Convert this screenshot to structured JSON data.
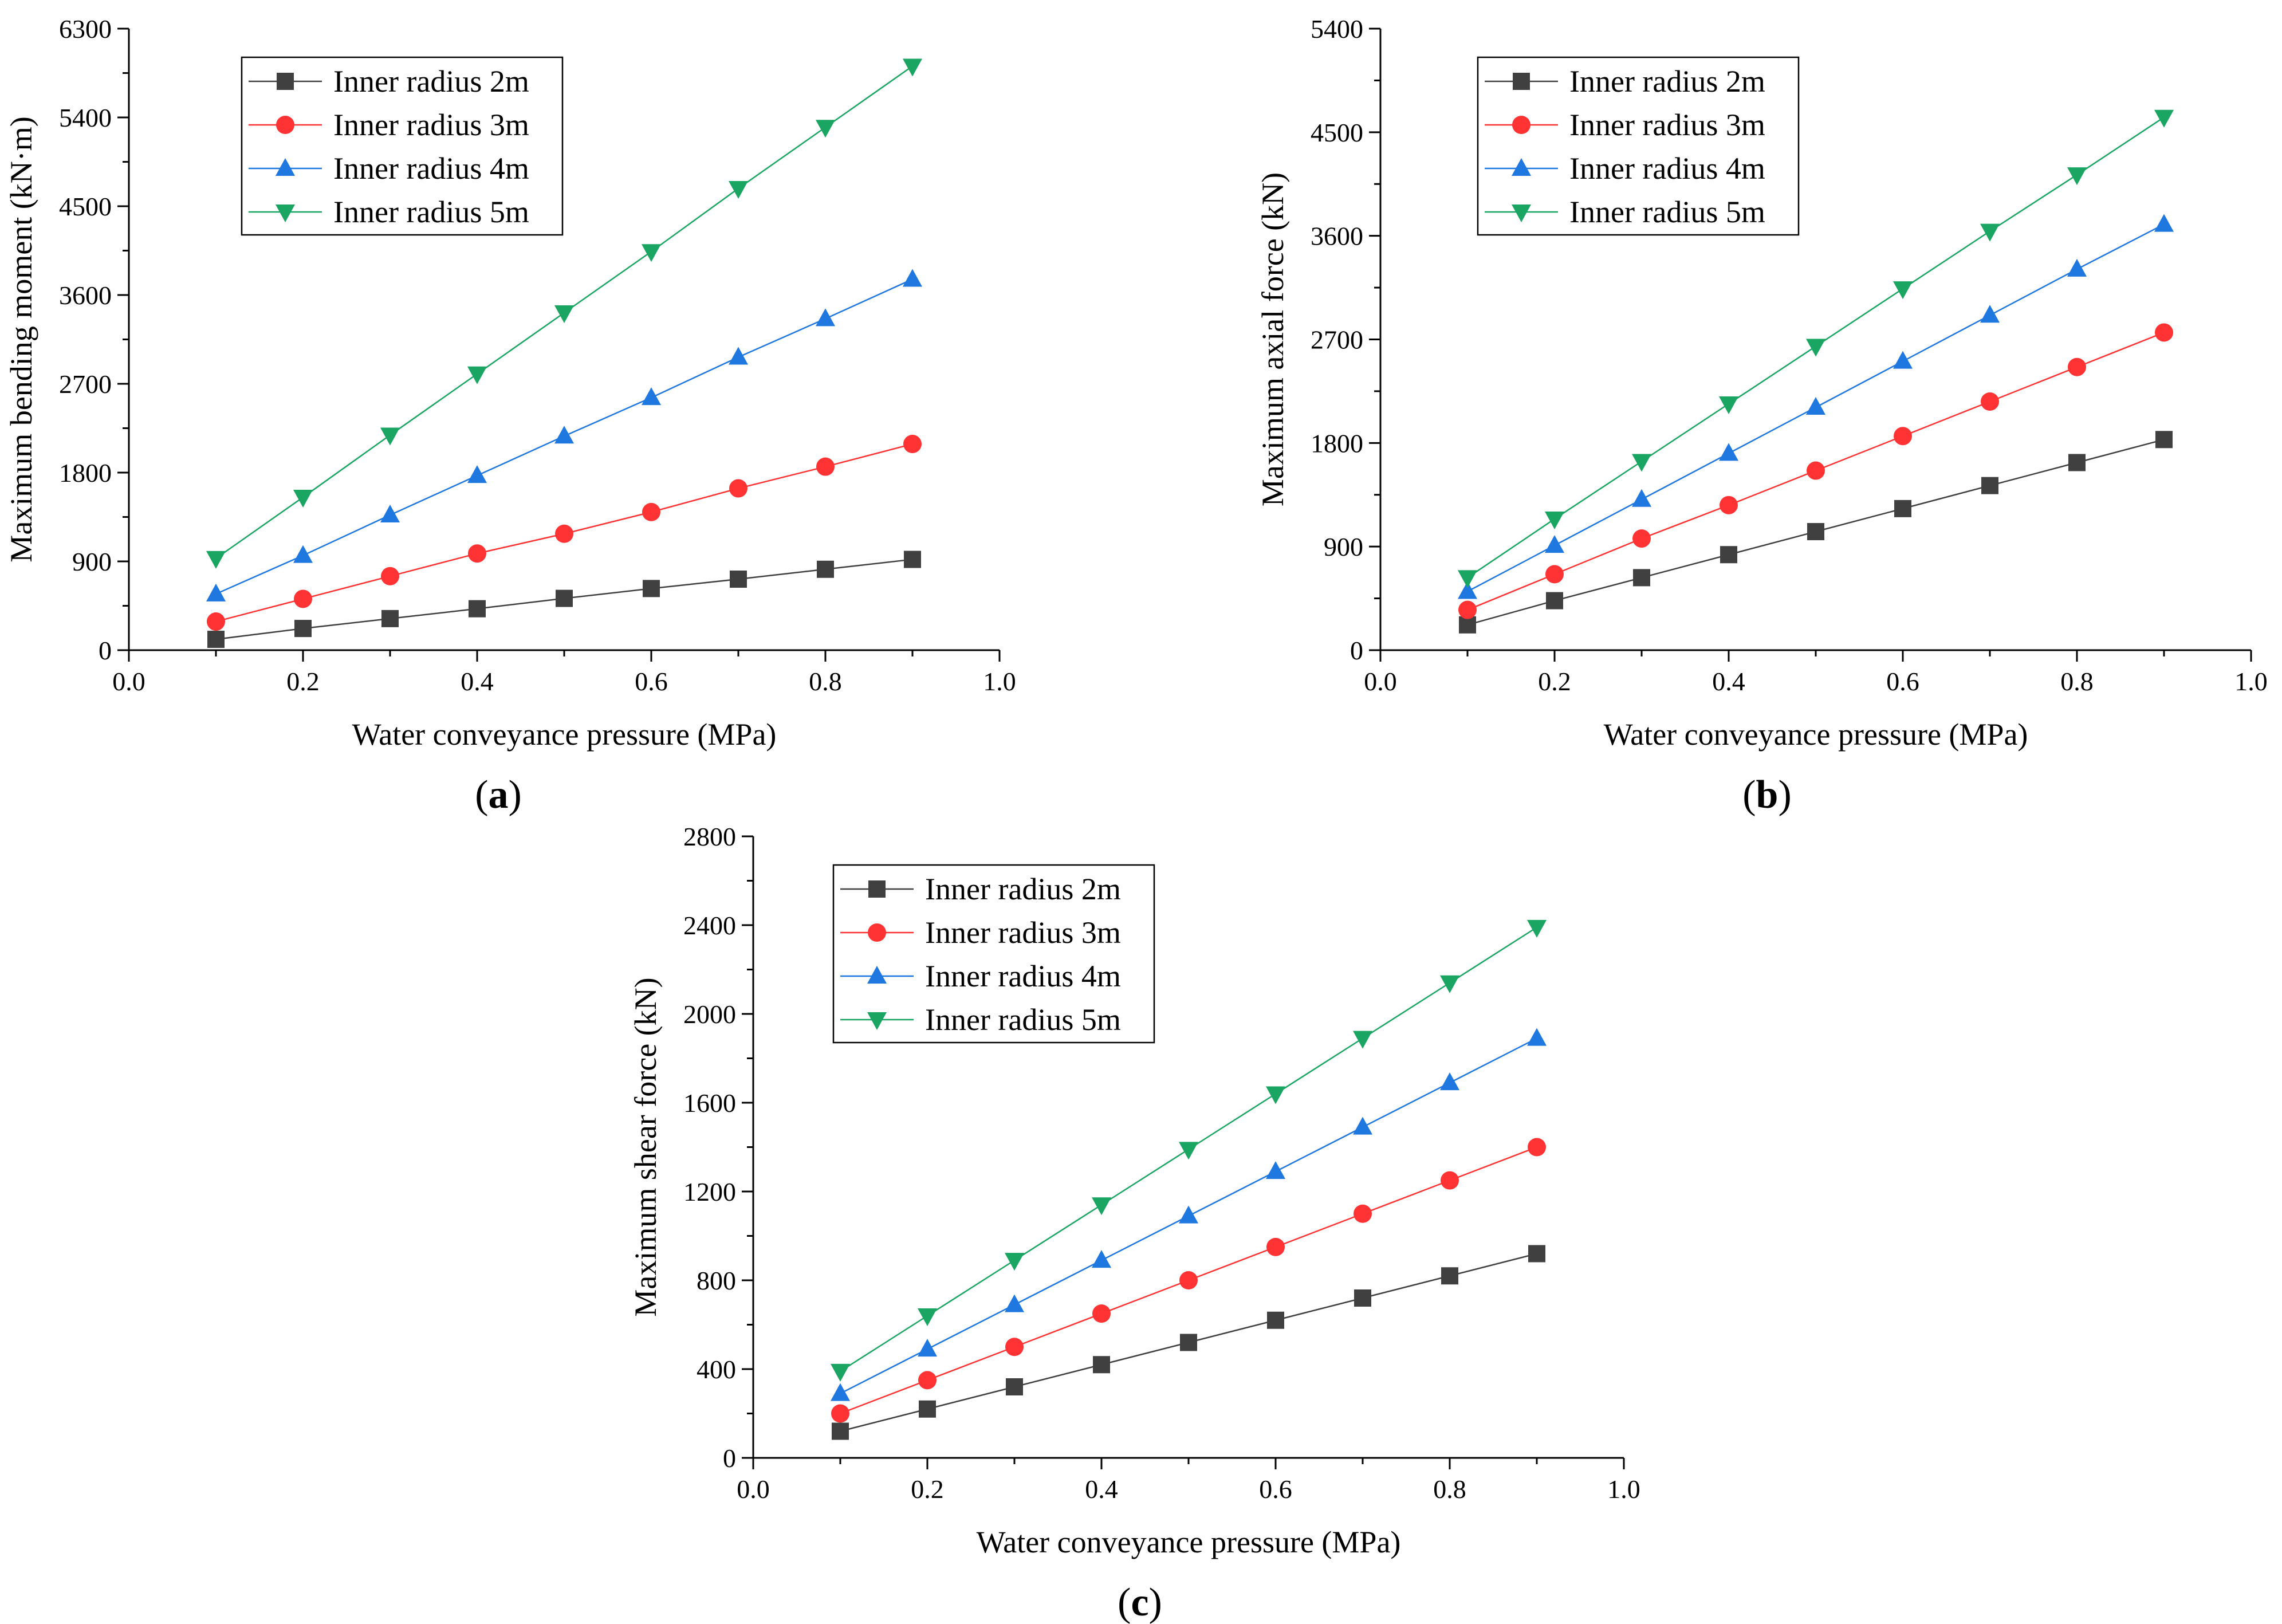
{
  "figure": {
    "panels": [
      "a",
      "b",
      "c"
    ]
  },
  "series_styles": [
    {
      "name": "Inner radius 2m",
      "color": "#404040",
      "marker": "square"
    },
    {
      "name": "Inner radius 3m",
      "color": "#ff3333",
      "marker": "circle"
    },
    {
      "name": "Inner radius 4m",
      "color": "#1f77e0",
      "marker": "triangle-up"
    },
    {
      "name": "Inner radius 5m",
      "color": "#1aa562",
      "marker": "triangle-down"
    }
  ],
  "chart_data": [
    {
      "id": "a",
      "type": "line",
      "panel_label": "a",
      "title": "",
      "xlabel": "Water conveyance pressure (MPa)",
      "ylabel": "Maximum bending moment (kN·m)",
      "xlim": [
        0.0,
        1.0
      ],
      "ylim": [
        0,
        6300
      ],
      "xticks": [
        "0.0",
        "0.2",
        "0.4",
        "0.6",
        "0.8",
        "1.0"
      ],
      "yticks": [
        "0",
        "900",
        "1800",
        "2700",
        "3600",
        "4500",
        "5400",
        "6300"
      ],
      "legend_position": "top-left",
      "x": [
        0.1,
        0.2,
        0.3,
        0.4,
        0.5,
        0.6,
        0.7,
        0.8,
        0.9
      ],
      "series": [
        {
          "name": "Inner radius 2m",
          "values": [
            110,
            220,
            320,
            420,
            525,
            625,
            720,
            820,
            920
          ]
        },
        {
          "name": "Inner radius 3m",
          "values": [
            290,
            520,
            750,
            980,
            1180,
            1400,
            1640,
            1860,
            2090
          ]
        },
        {
          "name": "Inner radius 4m",
          "values": [
            570,
            960,
            1370,
            1770,
            2170,
            2560,
            2970,
            3360,
            3760
          ]
        },
        {
          "name": "Inner radius 5m",
          "values": [
            930,
            1550,
            2180,
            2800,
            3420,
            4040,
            4680,
            5300,
            5920
          ]
        }
      ]
    },
    {
      "id": "b",
      "type": "line",
      "panel_label": "b",
      "title": "",
      "xlabel": "Water conveyance pressure (MPa)",
      "ylabel": "Maximum axial force (kN)",
      "xlim": [
        0.0,
        1.0
      ],
      "ylim": [
        0,
        5400
      ],
      "xticks": [
        "0.0",
        "0.2",
        "0.4",
        "0.6",
        "0.8",
        "1.0"
      ],
      "yticks": [
        "0",
        "900",
        "1800",
        "2700",
        "3600",
        "4500",
        "5400"
      ],
      "legend_position": "top-left",
      "x": [
        0.1,
        0.2,
        0.3,
        0.4,
        0.5,
        0.6,
        0.7,
        0.8,
        0.9
      ],
      "series": [
        {
          "name": "Inner radius 2m",
          "values": [
            220,
            430,
            630,
            830,
            1030,
            1230,
            1430,
            1630,
            1830
          ]
        },
        {
          "name": "Inner radius 3m",
          "values": [
            350,
            660,
            970,
            1260,
            1560,
            1860,
            2160,
            2460,
            2760
          ]
        },
        {
          "name": "Inner radius 4m",
          "values": [
            510,
            910,
            1310,
            1710,
            2110,
            2510,
            2910,
            3310,
            3700
          ]
        },
        {
          "name": "Inner radius 5m",
          "values": [
            630,
            1140,
            1640,
            2140,
            2640,
            3140,
            3640,
            4130,
            4630
          ]
        }
      ]
    },
    {
      "id": "c",
      "type": "line",
      "panel_label": "c",
      "title": "",
      "xlabel": "Water conveyance pressure (MPa)",
      "ylabel": "Maximum shear force (kN)",
      "xlim": [
        0.0,
        1.0
      ],
      "ylim": [
        0,
        2800
      ],
      "xticks": [
        "0.0",
        "0.2",
        "0.4",
        "0.6",
        "0.8",
        "1.0"
      ],
      "yticks": [
        "0",
        "400",
        "800",
        "1200",
        "1600",
        "2000",
        "2400",
        "2800"
      ],
      "legend_position": "top-left",
      "x": [
        0.1,
        0.2,
        0.3,
        0.4,
        0.5,
        0.6,
        0.7,
        0.8,
        0.9
      ],
      "series": [
        {
          "name": "Inner radius 2m",
          "values": [
            120,
            220,
            320,
            420,
            520,
            620,
            720,
            820,
            920
          ]
        },
        {
          "name": "Inner radius 3m",
          "values": [
            200,
            350,
            500,
            650,
            800,
            950,
            1100,
            1250,
            1400
          ]
        },
        {
          "name": "Inner radius 4m",
          "values": [
            290,
            490,
            690,
            890,
            1090,
            1290,
            1490,
            1690,
            1890
          ]
        },
        {
          "name": "Inner radius 5m",
          "values": [
            390,
            640,
            890,
            1140,
            1390,
            1640,
            1890,
            2140,
            2390
          ]
        }
      ]
    }
  ]
}
